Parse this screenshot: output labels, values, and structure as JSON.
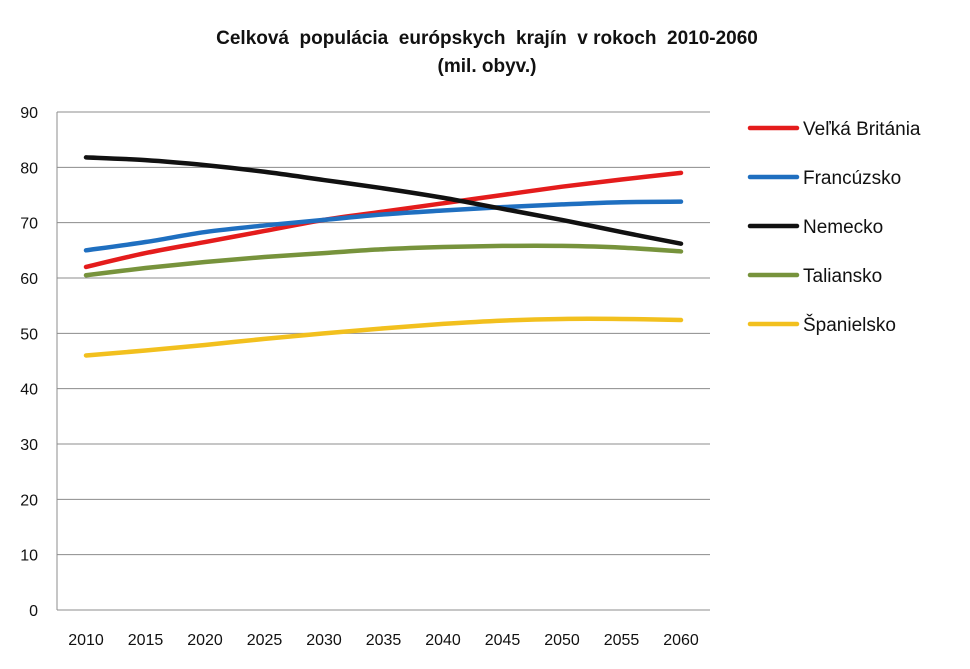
{
  "chart_data": {
    "type": "line",
    "title": "Celková  populácia  európskych  krajín  v rokoch  2010-2060",
    "subtitle": "(mil. obyv.)",
    "x": [
      2010,
      2015,
      2020,
      2025,
      2030,
      2035,
      2040,
      2045,
      2050,
      2055,
      2060
    ],
    "ylim": [
      0,
      90
    ],
    "yticks": [
      0,
      10,
      20,
      30,
      40,
      50,
      60,
      70,
      80,
      90
    ],
    "grid": true,
    "legend": "right",
    "series": [
      {
        "name": "Veľká Británia",
        "color": "#e41c1c",
        "values": [
          62.0,
          64.5,
          66.5,
          68.5,
          70.5,
          72.0,
          73.5,
          75.0,
          76.5,
          77.8,
          79.0
        ]
      },
      {
        "name": "Francúzsko",
        "color": "#1f6fc0",
        "values": [
          65.0,
          66.5,
          68.3,
          69.5,
          70.5,
          71.5,
          72.2,
          72.8,
          73.3,
          73.7,
          73.8
        ]
      },
      {
        "name": "Nemecko",
        "color": "#111111",
        "values": [
          81.8,
          81.3,
          80.4,
          79.2,
          77.7,
          76.2,
          74.5,
          72.5,
          70.5,
          68.3,
          66.2
        ]
      },
      {
        "name": "Taliansko",
        "color": "#77933c",
        "values": [
          60.5,
          61.8,
          62.9,
          63.8,
          64.5,
          65.2,
          65.6,
          65.8,
          65.8,
          65.5,
          64.8
        ]
      },
      {
        "name": "Španielsko",
        "color": "#f2c01e",
        "values": [
          46.0,
          46.9,
          47.9,
          49.0,
          50.0,
          50.9,
          51.7,
          52.3,
          52.6,
          52.6,
          52.4
        ]
      }
    ]
  }
}
